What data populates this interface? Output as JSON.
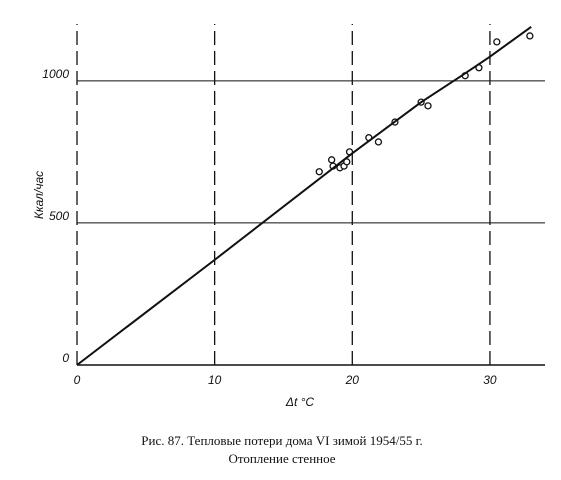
{
  "chart_data": {
    "type": "scatter",
    "title": "Рис. 87. Тепловые потери дома VI зимой 1954/55 г.",
    "subtitle": "Отопление стенное",
    "x_label": "Δt °C",
    "y_label": "Ккал/час",
    "xlim": [
      0,
      34
    ],
    "ylim": [
      0,
      1200
    ],
    "xticks": [
      0,
      10,
      20,
      30
    ],
    "yticks": [
      0,
      500,
      1000
    ],
    "grid": true,
    "color": "#111111",
    "series": [
      {
        "kind": "markers",
        "x": [
          17.6,
          18.5,
          18.6,
          19.1,
          19.4,
          19.6,
          19.8,
          21.2,
          21.9,
          23.1,
          25.0,
          25.5,
          28.2,
          29.2,
          30.5,
          32.9
        ],
        "values": [
          680,
          722,
          700,
          694,
          700,
          715,
          750,
          800,
          785,
          855,
          925,
          912,
          1018,
          1046,
          1137,
          1158
        ]
      },
      {
        "kind": "line",
        "x": [
          0,
          10,
          20,
          25,
          28,
          30,
          33
        ],
        "values": [
          0,
          370,
          745,
          925,
          1020,
          1085,
          1190
        ]
      }
    ]
  }
}
